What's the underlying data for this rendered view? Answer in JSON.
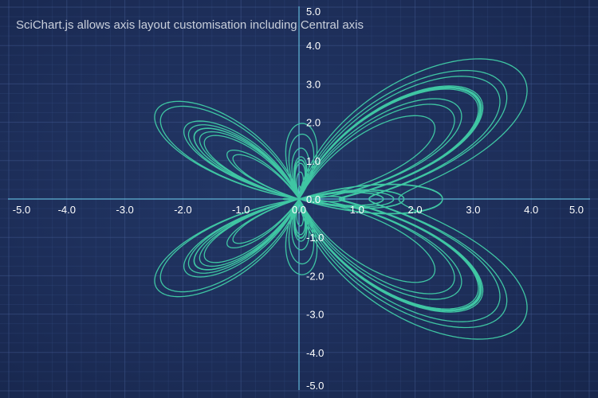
{
  "chart_data": {
    "type": "line",
    "title": "SciChart.js allows axis layout customisation including Central axis",
    "xlabel": "",
    "ylabel": "",
    "xlim": [
      -5,
      5
    ],
    "ylim": [
      -5,
      5
    ],
    "x_ticks": [
      "-5.0",
      "-4.0",
      "-3.0",
      "-2.0",
      "-1.0",
      "0.0",
      "1.0",
      "2.0",
      "3.0",
      "4.0",
      "5.0"
    ],
    "y_ticks": [
      "-5.0",
      "-4.0",
      "-3.0",
      "-2.0",
      "-1.0",
      "0.0",
      "1.0",
      "2.0",
      "3.0",
      "4.0",
      "5.0"
    ],
    "axis_position": "central",
    "grid": true,
    "legend": "none",
    "series": [
      {
        "equation": "r = e^{sin(t)} - 2cos(4t) + sin^5((2t - pi)/24); x = r*sin(t), y = r*cos(t)",
        "t_range": [
          0,
          75.4
        ],
        "samples": 5000
      }
    ],
    "colors": {
      "background": "#1d2e59",
      "series": "#3fc6a3",
      "axis": "#6fd3f2",
      "grid": "#2a3d6e",
      "title": "#c9cfdb",
      "ticks": "#ffffff"
    }
  }
}
